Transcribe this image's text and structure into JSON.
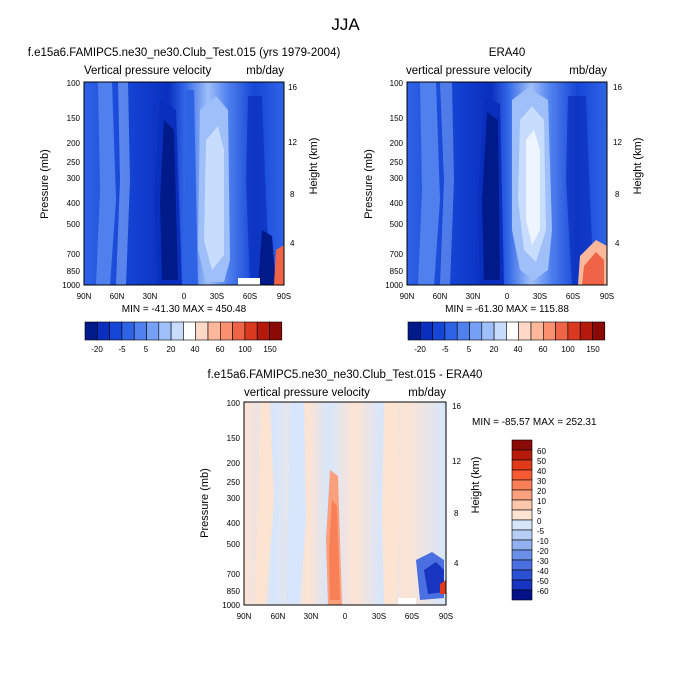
{
  "figure": {
    "title": "JJA"
  },
  "chart_data": [
    {
      "type": "heatmap",
      "title": "f.e15a6.FAMIPC5.ne30_ne30.Club_Test.015 (yrs 1979-2004)",
      "left_label": "Vertical pressure velocity",
      "right_label": "mb/day",
      "xlabel": "",
      "ylabel": "Pressure (mb)",
      "ylabel_right": "Height (km)",
      "x_ticks": [
        "90N",
        "60N",
        "30N",
        "0",
        "30S",
        "60S",
        "90S"
      ],
      "y_ticks": [
        "100",
        "150",
        "200",
        "250",
        "300",
        "400",
        "500",
        "700",
        "850",
        "1000"
      ],
      "y_ticks_right": [
        "16",
        "12",
        "8",
        "4"
      ],
      "stats": "MIN = -41.30   MAX = 450.48",
      "colorbar_ticks": [
        "-20",
        "-5",
        "5",
        "20",
        "40",
        "60",
        "100",
        "150"
      ]
    },
    {
      "type": "heatmap",
      "title": "ERA40",
      "left_label": "vertical pressure velocity",
      "right_label": "mb/day",
      "xlabel": "",
      "ylabel": "Pressure (mb)",
      "ylabel_right": "Height (km)",
      "x_ticks": [
        "90N",
        "60N",
        "30N",
        "0",
        "30S",
        "60S",
        "90S"
      ],
      "y_ticks": [
        "100",
        "150",
        "200",
        "250",
        "300",
        "400",
        "500",
        "700",
        "850",
        "1000"
      ],
      "y_ticks_right": [
        "16",
        "12",
        "8",
        "4"
      ],
      "stats": "MIN = -61.30   MAX = 115.88",
      "colorbar_ticks": [
        "-20",
        "-5",
        "5",
        "20",
        "40",
        "60",
        "100",
        "150"
      ]
    },
    {
      "type": "heatmap",
      "title": "f.e15a6.FAMIPC5.ne30_ne30.Club_Test.015 - ERA40",
      "left_label": "vertical pressure velocity",
      "right_label": "mb/day",
      "xlabel": "",
      "ylabel": "Pressure (mb)",
      "ylabel_right": "Height (km)",
      "x_ticks": [
        "90N",
        "60N",
        "30N",
        "0",
        "30S",
        "60S",
        "90S"
      ],
      "y_ticks": [
        "100",
        "150",
        "200",
        "250",
        "300",
        "400",
        "500",
        "700",
        "850",
        "1000"
      ],
      "y_ticks_right": [
        "16",
        "12",
        "8",
        "4"
      ],
      "stats": "MIN = -85.57   MAX = 252.31",
      "colorbar_ticks": [
        "60",
        "50",
        "40",
        "30",
        "20",
        "10",
        "5",
        "0",
        "-5",
        "-10",
        "-20",
        "-30",
        "-40",
        "-50",
        "-60"
      ]
    }
  ],
  "colors": {
    "abs_scale": [
      "#001a8a",
      "#0a2fbe",
      "#1646d6",
      "#2f63e6",
      "#4f80ee",
      "#76a0f5",
      "#9fbff9",
      "#c8dcfd",
      "#ffffff",
      "#ffd8c8",
      "#fdb89c",
      "#f99070",
      "#ef6447",
      "#d93a1f",
      "#b5190b",
      "#8a0a05"
    ],
    "diff_scale": [
      "#8a0a05",
      "#b81a0a",
      "#e03a1a",
      "#f55a32",
      "#f97f56",
      "#fba07c",
      "#fcc7ab",
      "#fde3d2",
      "#d7e6fb",
      "#b7cff6",
      "#91b1f0",
      "#6a8fe8",
      "#4a6fe0",
      "#2c50d4",
      "#1735c0",
      "#04128a"
    ]
  }
}
